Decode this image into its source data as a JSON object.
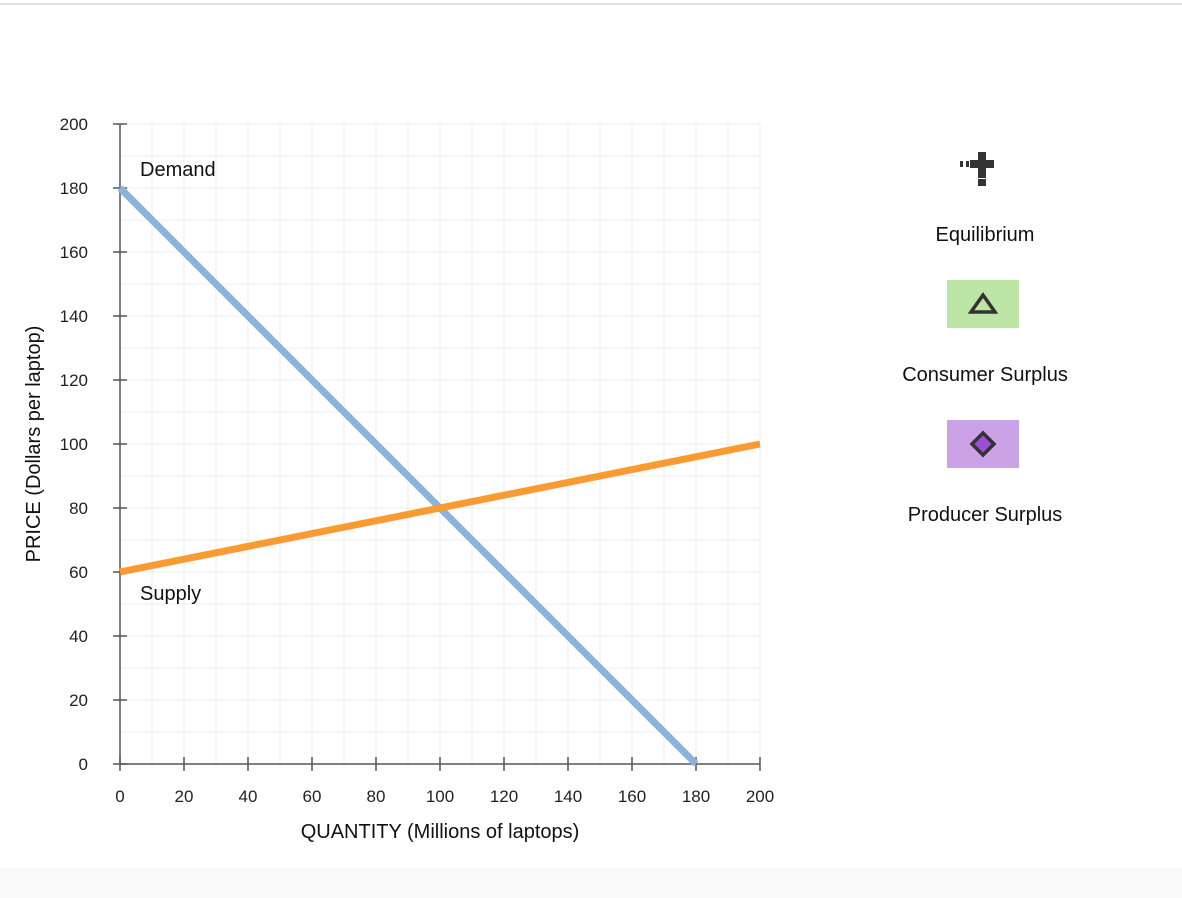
{
  "chart_data": {
    "type": "line",
    "xlabel": "QUANTITY (Millions of laptops)",
    "ylabel": "PRICE (Dollars per laptop)",
    "xlim": [
      0,
      200
    ],
    "ylim": [
      0,
      200
    ],
    "x_ticks": [
      0,
      20,
      40,
      60,
      80,
      100,
      120,
      140,
      160,
      180,
      200
    ],
    "y_ticks": [
      0,
      20,
      40,
      60,
      80,
      100,
      120,
      140,
      160,
      180,
      200
    ],
    "grid": true,
    "series": [
      {
        "name": "Demand",
        "color": "#8cb4da",
        "points": [
          [
            0,
            180
          ],
          [
            180,
            0
          ]
        ]
      },
      {
        "name": "Supply",
        "color": "#f99b32",
        "points": [
          [
            0,
            60
          ],
          [
            200,
            100
          ]
        ]
      }
    ]
  },
  "palette": {
    "equilibrium": {
      "label": "Equilibrium",
      "icon": "plus-cross-icon",
      "color": "#333333"
    },
    "consumer_surplus": {
      "label": "Consumer Surplus",
      "icon": "triangle-icon",
      "color": "#bde6a6"
    },
    "producer_surplus": {
      "label": "Producer Surplus",
      "icon": "diamond-icon",
      "color": "#caa2e5"
    }
  }
}
